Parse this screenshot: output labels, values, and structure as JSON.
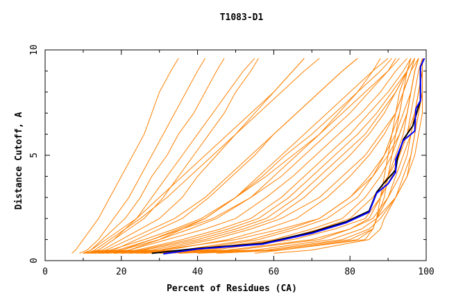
{
  "chart_data": {
    "type": "line",
    "title": "T1083-D1",
    "xlabel": "Percent of Residues (CA)",
    "ylabel": "Distance Cutoff, A",
    "xlim": [
      0,
      100
    ],
    "ylim": [
      0,
      10
    ],
    "x_ticks": [
      "0",
      "20",
      "40",
      "60",
      "80",
      "100"
    ],
    "y_ticks": [
      "0",
      "5",
      "10"
    ],
    "grid": false,
    "colors": {
      "models": "#ff8000",
      "highlight": "#0000ff",
      "reference": "#000000"
    },
    "cutoff_levels": [
      0.35,
      0.5,
      1,
      1.5,
      2,
      3,
      4,
      5,
      6,
      7,
      8,
      9,
      9.6
    ],
    "model_series_percent_at_cutoff": [
      [
        7,
        8,
        10,
        12,
        14,
        17,
        20,
        23,
        26,
        28,
        30,
        33,
        35
      ],
      [
        10,
        12,
        15,
        18,
        21,
        25,
        28,
        32,
        35,
        39,
        42,
        45,
        47
      ],
      [
        10,
        14,
        18,
        22,
        26,
        31,
        35,
        39,
        43,
        47,
        50,
        54,
        56
      ],
      [
        11,
        15,
        20,
        25,
        30,
        36,
        40,
        45,
        50,
        55,
        60,
        65,
        68
      ],
      [
        12,
        18,
        24,
        30,
        36,
        43,
        49,
        55,
        60,
        66,
        72,
        78,
        82
      ],
      [
        13,
        20,
        28,
        35,
        42,
        50,
        57,
        63,
        70,
        76,
        82,
        88,
        91
      ],
      [
        10,
        22,
        32,
        42,
        50,
        58,
        65,
        71,
        77,
        83,
        88,
        92,
        95
      ],
      [
        12,
        25,
        38,
        48,
        56,
        64,
        70,
        76,
        82,
        87,
        91,
        95,
        97
      ],
      [
        14,
        28,
        42,
        52,
        60,
        68,
        74,
        80,
        85,
        89,
        92,
        95,
        97
      ],
      [
        16,
        32,
        48,
        58,
        66,
        74,
        80,
        85,
        89,
        92,
        94,
        96,
        98
      ],
      [
        18,
        36,
        54,
        64,
        72,
        80,
        85,
        89,
        92,
        94,
        96,
        97,
        98
      ],
      [
        20,
        40,
        60,
        70,
        78,
        84,
        88,
        91,
        93,
        95,
        96,
        97,
        98
      ],
      [
        22,
        44,
        65,
        76,
        84,
        88,
        91,
        93,
        95,
        96,
        97,
        98,
        99
      ],
      [
        25,
        48,
        70,
        80,
        86,
        90,
        93,
        95,
        96,
        97,
        98,
        99,
        99
      ],
      [
        30,
        55,
        75,
        83,
        87,
        92,
        95,
        97,
        98,
        99,
        99,
        99,
        99
      ],
      [
        35,
        58,
        78,
        85,
        88,
        92,
        95,
        96,
        97,
        98,
        99,
        99,
        99
      ],
      [
        40,
        60,
        80,
        86,
        87,
        90,
        92,
        94,
        96,
        97,
        98,
        99,
        99
      ],
      [
        45,
        62,
        82,
        86,
        87,
        89,
        90,
        91,
        92,
        93,
        94,
        96,
        97
      ],
      [
        55,
        62,
        84,
        86,
        87,
        88,
        89,
        90,
        91,
        92,
        93,
        95,
        96
      ],
      [
        60,
        70,
        85,
        88,
        89,
        92,
        94,
        96,
        97,
        98,
        99,
        99,
        99
      ],
      [
        15,
        22,
        30,
        36,
        42,
        50,
        56,
        62,
        68,
        74,
        80,
        86,
        90
      ],
      [
        12,
        16,
        22,
        28,
        34,
        42,
        48,
        54,
        60,
        66,
        72,
        78,
        82
      ],
      [
        11,
        13,
        17,
        21,
        25,
        32,
        38,
        44,
        50,
        56,
        62,
        68,
        72
      ],
      [
        10,
        12,
        16,
        20,
        24,
        30,
        36,
        42,
        48,
        54,
        60,
        65,
        68
      ],
      [
        13,
        19,
        28,
        36,
        44,
        54,
        62,
        68,
        74,
        80,
        85,
        90,
        92
      ],
      [
        10,
        17,
        26,
        34,
        41,
        50,
        58,
        65,
        72,
        78,
        84,
        90,
        93
      ],
      [
        20,
        30,
        44,
        54,
        62,
        72,
        78,
        84,
        88,
        92,
        94,
        96,
        97
      ],
      [
        24,
        38,
        56,
        66,
        74,
        82,
        86,
        89,
        91,
        93,
        94,
        95,
        96
      ],
      [
        18,
        30,
        50,
        62,
        72,
        80,
        86,
        90,
        93,
        95,
        96,
        97,
        98
      ],
      [
        9,
        11,
        14,
        16,
        18,
        22,
        25,
        28,
        31,
        34,
        37,
        40,
        42
      ],
      [
        12,
        14,
        18,
        21,
        24,
        28,
        32,
        36,
        40,
        44,
        48,
        52,
        55
      ],
      [
        14,
        24,
        36,
        46,
        54,
        62,
        68,
        74,
        80,
        85,
        90,
        94,
        96
      ],
      [
        26,
        42,
        62,
        72,
        80,
        86,
        90,
        93,
        95,
        97,
        98,
        99,
        99
      ],
      [
        32,
        50,
        72,
        80,
        85,
        88,
        90,
        92,
        94,
        95,
        96,
        97,
        98
      ],
      [
        11,
        20,
        30,
        38,
        45,
        54,
        60,
        66,
        72,
        77,
        82,
        86,
        88
      ],
      [
        15,
        26,
        40,
        50,
        58,
        66,
        72,
        78,
        84,
        88,
        92,
        95,
        96
      ]
    ],
    "reference_series": [
      [
        28,
        0.35
      ],
      [
        40,
        0.58
      ],
      [
        57,
        0.82
      ],
      [
        70,
        1.35
      ],
      [
        79,
        1.85
      ],
      [
        85,
        2.35
      ],
      [
        87,
        3.25
      ],
      [
        89,
        3.7
      ],
      [
        92,
        4.3
      ],
      [
        92.5,
        4.9
      ],
      [
        94,
        5.75
      ],
      [
        96.5,
        6.4
      ],
      [
        98,
        7.3
      ],
      [
        98.5,
        7.6
      ],
      [
        98.5,
        9.2
      ],
      [
        99.5,
        9.6
      ]
    ],
    "highlight_series": [
      [
        31,
        0.32
      ],
      [
        40,
        0.55
      ],
      [
        57,
        0.78
      ],
      [
        70,
        1.3
      ],
      [
        79,
        1.8
      ],
      [
        85,
        2.3
      ],
      [
        87,
        3.2
      ],
      [
        90,
        3.65
      ],
      [
        92,
        4.2
      ],
      [
        92,
        4.8
      ],
      [
        94,
        5.7
      ],
      [
        97,
        6.15
      ],
      [
        97.3,
        7.2
      ],
      [
        98.5,
        7.6
      ],
      [
        98.5,
        9.2
      ],
      [
        99.5,
        9.6
      ]
    ]
  }
}
